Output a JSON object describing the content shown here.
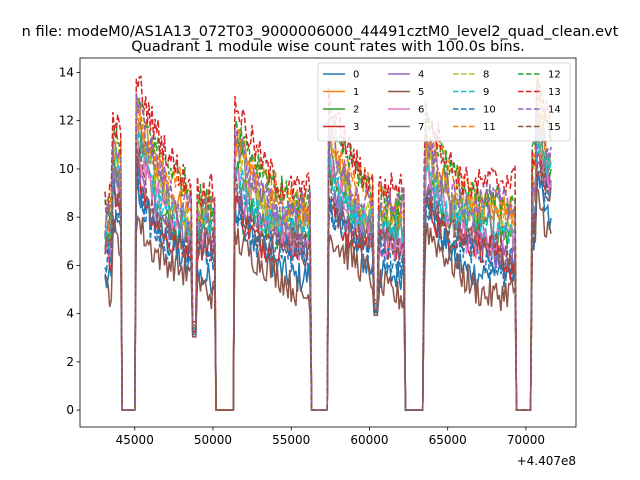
{
  "figure": {
    "suptitle": "n file: modeM0/AS1A13_072T03_9000006000_44491cztM0_level2_quad_clean.evt"
  },
  "chart_data": {
    "type": "line",
    "title": "Quadrant 1 module wise count rates with 100.0s bins.",
    "xlabel": "",
    "ylabel": "",
    "x_offset_label": "+4.407e8",
    "xlim": [
      41500,
      73200
    ],
    "ylim": [
      -0.7,
      14.6
    ],
    "xticks": [
      45000,
      50000,
      55000,
      60000,
      65000,
      70000
    ],
    "xtick_labels": [
      "45000",
      "50000",
      "55000",
      "60000",
      "65000",
      "70000"
    ],
    "yticks": [
      0,
      2,
      4,
      6,
      8,
      10,
      12,
      14
    ],
    "ytick_labels": [
      "0",
      "2",
      "4",
      "6",
      "8",
      "10",
      "12",
      "14"
    ],
    "legend_position": "top-right",
    "legend_columns": 4,
    "x_range": [
      43100,
      71600
    ],
    "gaps": [
      [
        44200,
        45000
      ],
      [
        50200,
        51300
      ],
      [
        56300,
        57300
      ],
      [
        62300,
        63400
      ],
      [
        69400,
        70300
      ]
    ],
    "peak_times": [
      43700,
      45200,
      51500,
      57500,
      63700,
      69500,
      70800
    ],
    "dips": [
      [
        48800,
        2.3
      ],
      [
        60400,
        3.2
      ]
    ],
    "series": [
      {
        "name": "0",
        "color": "#1f77b4",
        "dash": false,
        "level": 5.6
      },
      {
        "name": "1",
        "color": "#ff7f0e",
        "dash": false,
        "level": 8.0
      },
      {
        "name": "2",
        "color": "#2ca02c",
        "dash": false,
        "level": 7.0
      },
      {
        "name": "3",
        "color": "#d62728",
        "dash": false,
        "level": 6.2
      },
      {
        "name": "4",
        "color": "#9467bd",
        "dash": false,
        "level": 6.6
      },
      {
        "name": "5",
        "color": "#8c564b",
        "dash": false,
        "level": 4.9
      },
      {
        "name": "6",
        "color": "#e377c2",
        "dash": false,
        "level": 6.9
      },
      {
        "name": "7",
        "color": "#7f7f7f",
        "dash": false,
        "level": 7.5
      },
      {
        "name": "8",
        "color": "#bcbd22",
        "dash": true,
        "level": 7.8
      },
      {
        "name": "9",
        "color": "#17becf",
        "dash": true,
        "level": 7.2
      },
      {
        "name": "10",
        "color": "#1f77b4",
        "dash": true,
        "level": 5.9
      },
      {
        "name": "11",
        "color": "#ff7f0e",
        "dash": true,
        "level": 8.3
      },
      {
        "name": "12",
        "color": "#2ca02c",
        "dash": true,
        "level": 8.6
      },
      {
        "name": "13",
        "color": "#d62728",
        "dash": true,
        "level": 9.1
      },
      {
        "name": "14",
        "color": "#9467bd",
        "dash": true,
        "level": 8.1
      },
      {
        "name": "15",
        "color": "#8c564b",
        "dash": true,
        "level": 6.4
      }
    ]
  }
}
